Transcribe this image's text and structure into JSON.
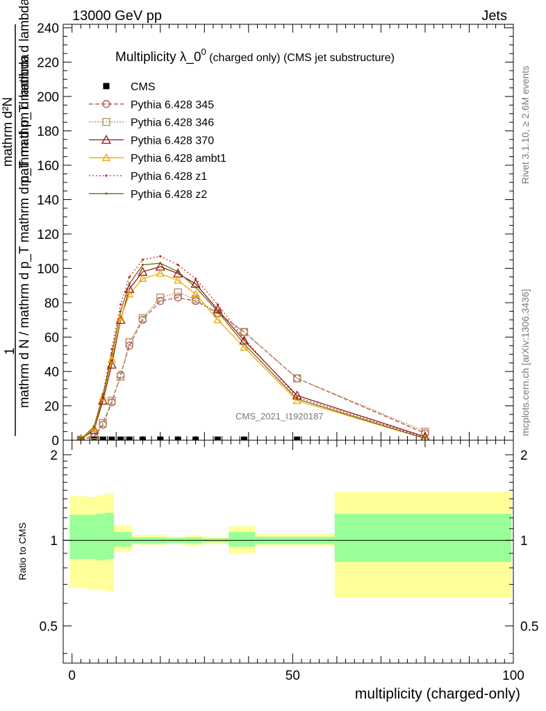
{
  "header": {
    "left": "13000 GeV pp",
    "right": "Jets"
  },
  "side_labels": {
    "rivet": "Rivet 3.1.10, ≥ 2.6M events",
    "mcplots": "mcplots.cern.ch [arXiv:1306.3436]"
  },
  "watermark": "CMS_2021_I1920187",
  "colors": {
    "cms": "#000000",
    "p345": "#b5524a",
    "p346": "#a88a58",
    "p370": "#8b1a1a",
    "ambt1": "#f0a800",
    "z1": "#d42020",
    "z2": "#6b6b10",
    "band_inner": "#99ff99",
    "band_outer": "#ffff99"
  },
  "chart_data": [
    {
      "type": "line",
      "title_main": "Multiplicity λ_0",
      "title_sup": "0",
      "title_rest": " (charged only) (CMS jet substructure)",
      "ylabel_top": "1",
      "ylabel_main": "mathrm d N / mathrm d p_T mathrm d p_T mathrm d lambda",
      "ylabel_numerator": "mathrm d²N",
      "ylabel_denominator": "mathrm d p_T mathrm d lambda",
      "ylim": [
        0,
        242
      ],
      "xlim": [
        -2,
        100
      ],
      "yticks": [
        0,
        20,
        40,
        60,
        80,
        100,
        120,
        140,
        160,
        180,
        200,
        220,
        240
      ],
      "legend_position": "top-left",
      "series": [
        {
          "name": "CMS",
          "key": "cms",
          "marker": "square",
          "dash": "none",
          "x": [
            2,
            5,
            7,
            9,
            11,
            13,
            16,
            20,
            24,
            28,
            33,
            39,
            51
          ],
          "y": [
            0.3,
            0.3,
            0.3,
            0.3,
            0.3,
            0.3,
            0.3,
            0.3,
            0.3,
            0.3,
            0.3,
            0.3,
            0.3
          ]
        },
        {
          "name": "Pythia 6.428 345",
          "key": "p345",
          "marker": "circle",
          "dash": "6,3",
          "x": [
            2,
            5,
            7,
            9,
            11,
            13,
            16,
            20,
            24,
            28,
            33,
            39,
            51,
            80
          ],
          "y": [
            0.3,
            2,
            9,
            22,
            38,
            55,
            70,
            81,
            83,
            81,
            74,
            63,
            36,
            4
          ]
        },
        {
          "name": "Pythia 6.428 346",
          "key": "p346",
          "marker": "square-open",
          "dash": "2,2",
          "x": [
            2,
            5,
            7,
            9,
            11,
            13,
            16,
            20,
            24,
            28,
            33,
            39,
            51,
            80
          ],
          "y": [
            0.3,
            3,
            10,
            23,
            37,
            57,
            71,
            83,
            86,
            82,
            74,
            63,
            36,
            5
          ]
        },
        {
          "name": "Pythia 6.428 370",
          "key": "p370",
          "marker": "triangle-open",
          "dash": "none",
          "x": [
            2,
            5,
            7,
            9,
            11,
            13,
            16,
            20,
            24,
            28,
            33,
            39,
            51,
            80
          ],
          "y": [
            0.5,
            6,
            23,
            44,
            70,
            88,
            98,
            101,
            97,
            91,
            76,
            58,
            26,
            2
          ]
        },
        {
          "name": "Pythia 6.428 ambt1",
          "key": "ambt1",
          "marker": "triangle-open-small",
          "dash": "none",
          "x": [
            2,
            5,
            7,
            9,
            11,
            13,
            16,
            20,
            24,
            28,
            33,
            39,
            51,
            80
          ],
          "y": [
            0.5,
            7,
            25,
            47,
            71,
            85,
            94,
            97,
            93,
            85,
            70,
            54,
            23,
            1
          ]
        },
        {
          "name": "Pythia 6.428 z1",
          "key": "z1",
          "marker": "dot",
          "dash": "2,3",
          "x": [
            2,
            5,
            7,
            9,
            11,
            13,
            16,
            20,
            24,
            28,
            33,
            39,
            51,
            80
          ],
          "y": [
            0.5,
            8,
            27,
            53,
            79,
            95,
            105,
            107,
            102,
            94,
            79,
            59,
            25,
            1.5
          ]
        },
        {
          "name": "Pythia 6.428 z2",
          "key": "z2",
          "marker": "dot",
          "dash": "none",
          "x": [
            2,
            5,
            7,
            9,
            11,
            13,
            16,
            20,
            24,
            28,
            33,
            39,
            51,
            80
          ],
          "y": [
            0.5,
            8,
            26,
            50,
            75,
            91,
            102,
            103,
            98,
            89,
            75,
            56,
            24,
            1
          ]
        }
      ]
    },
    {
      "type": "area",
      "ylabel": "Ratio to CMS",
      "xlabel": "multiplicity (charged-only)",
      "xlim": [
        -2,
        100
      ],
      "ylim": [
        0.37,
        2.25
      ],
      "xticks": [
        0,
        50,
        100
      ],
      "yticks": [
        0.5,
        1,
        2
      ],
      "reference_line": 1,
      "bins": [
        {
          "x0": -0.5,
          "x1": 3.5,
          "inner": [
            0.86,
            1.23
          ],
          "outer": [
            0.68,
            1.43
          ]
        },
        {
          "x0": 3.5,
          "x1": 5.5,
          "inner": [
            0.86,
            1.23
          ],
          "outer": [
            0.67,
            1.42
          ]
        },
        {
          "x0": 5.5,
          "x1": 7.5,
          "inner": [
            0.85,
            1.24
          ],
          "outer": [
            0.67,
            1.44
          ]
        },
        {
          "x0": 7.5,
          "x1": 9.5,
          "inner": [
            0.86,
            1.25
          ],
          "outer": [
            0.66,
            1.46
          ]
        },
        {
          "x0": 9.5,
          "x1": 13.5,
          "inner": [
            0.95,
            1.07
          ],
          "outer": [
            0.91,
            1.13
          ]
        },
        {
          "x0": 13.5,
          "x1": 21.5,
          "inner": [
            0.976,
            1.025
          ],
          "outer": [
            0.965,
            1.045
          ]
        },
        {
          "x0": 21.5,
          "x1": 25.5,
          "inner": [
            0.98,
            1.02
          ],
          "outer": [
            0.97,
            1.03
          ]
        },
        {
          "x0": 25.5,
          "x1": 29.5,
          "inner": [
            0.975,
            1.025
          ],
          "outer": [
            0.955,
            1.045
          ]
        },
        {
          "x0": 29.5,
          "x1": 35.5,
          "inner": [
            0.985,
            1.015
          ],
          "outer": [
            0.97,
            1.03
          ]
        },
        {
          "x0": 35.5,
          "x1": 41.5,
          "inner": [
            0.95,
            1.07
          ],
          "outer": [
            0.9,
            1.12
          ]
        },
        {
          "x0": 41.5,
          "x1": 59.5,
          "inner": [
            0.97,
            1.03
          ],
          "outer": [
            0.955,
            1.05
          ]
        },
        {
          "x0": 59.5,
          "x1": 99.5,
          "inner": [
            0.84,
            1.24
          ],
          "outer": [
            0.63,
            1.48
          ]
        }
      ]
    }
  ]
}
